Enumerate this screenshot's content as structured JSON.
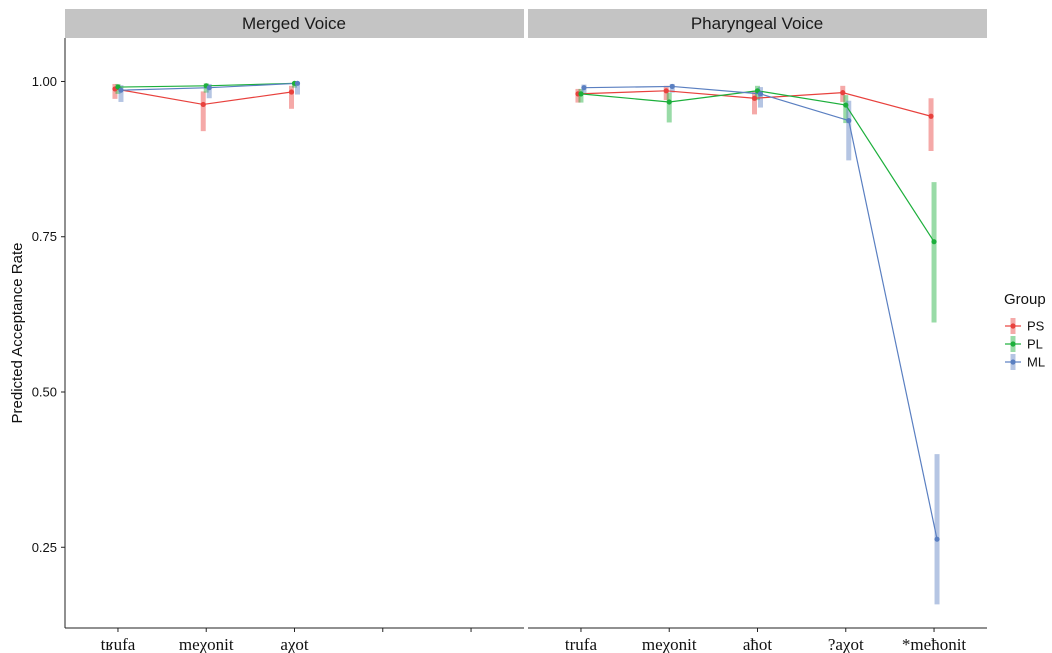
{
  "chart_data": {
    "type": "line",
    "ylabel": "Predicted Acceptance Rate",
    "ylim": [
      0.12,
      1.07
    ],
    "yticks": [
      "0.25",
      "0.50",
      "0.75",
      "1.00"
    ],
    "ytick_values": [
      0.25,
      0.5,
      0.75,
      1.0
    ],
    "legend": {
      "title": "Group",
      "placement": "right",
      "entries": [
        "PS",
        "PL",
        "ML"
      ]
    },
    "colors": {
      "PS": "#E8413D",
      "PL": "#1CAF3B",
      "ML": "#5A7FC1"
    },
    "panels": [
      {
        "title": "Merged Voice",
        "categories": [
          "tʁufa",
          "meχonit",
          "aχot",
          "",
          ""
        ],
        "series": [
          {
            "name": "PS",
            "values": [
              0.988,
              0.963,
              0.983
            ],
            "lower": [
              0.972,
              0.92,
              0.956
            ],
            "upper": [
              0.996,
              0.984,
              0.993
            ]
          },
          {
            "name": "PL",
            "values": [
              0.991,
              0.993,
              0.997
            ],
            "lower": [
              0.98,
              0.982,
              0.99
            ],
            "upper": [
              0.996,
              0.997,
              0.999
            ]
          },
          {
            "name": "ML",
            "values": [
              0.986,
              0.99,
              0.997
            ],
            "lower": [
              0.967,
              0.973,
              0.979
            ],
            "upper": [
              0.994,
              0.996,
              0.999
            ]
          }
        ]
      },
      {
        "title": "Pharyngeal Voice",
        "categories": [
          "trufa",
          "meχonit",
          "aħot",
          "?aχot",
          "*meħonit"
        ],
        "series": [
          {
            "name": "PS",
            "values": [
              0.98,
              0.985,
              0.973,
              0.982,
              0.944
            ],
            "lower": [
              0.966,
              0.97,
              0.947,
              0.967,
              0.888
            ],
            "upper": [
              0.988,
              0.993,
              0.985,
              0.993,
              0.973
            ]
          },
          {
            "name": "PL",
            "values": [
              0.98,
              0.967,
              0.985,
              0.962,
              0.742
            ],
            "lower": [
              0.966,
              0.934,
              0.97,
              0.933,
              0.612
            ],
            "upper": [
              0.988,
              0.982,
              0.993,
              0.978,
              0.838
            ]
          },
          {
            "name": "ML",
            "values": [
              0.99,
              0.992,
              0.98,
              0.937,
              0.263
            ],
            "lower": [
              0.979,
              0.982,
              0.958,
              0.873,
              0.158
            ],
            "upper": [
              0.995,
              0.996,
              0.991,
              0.969,
              0.4
            ]
          }
        ]
      }
    ]
  }
}
